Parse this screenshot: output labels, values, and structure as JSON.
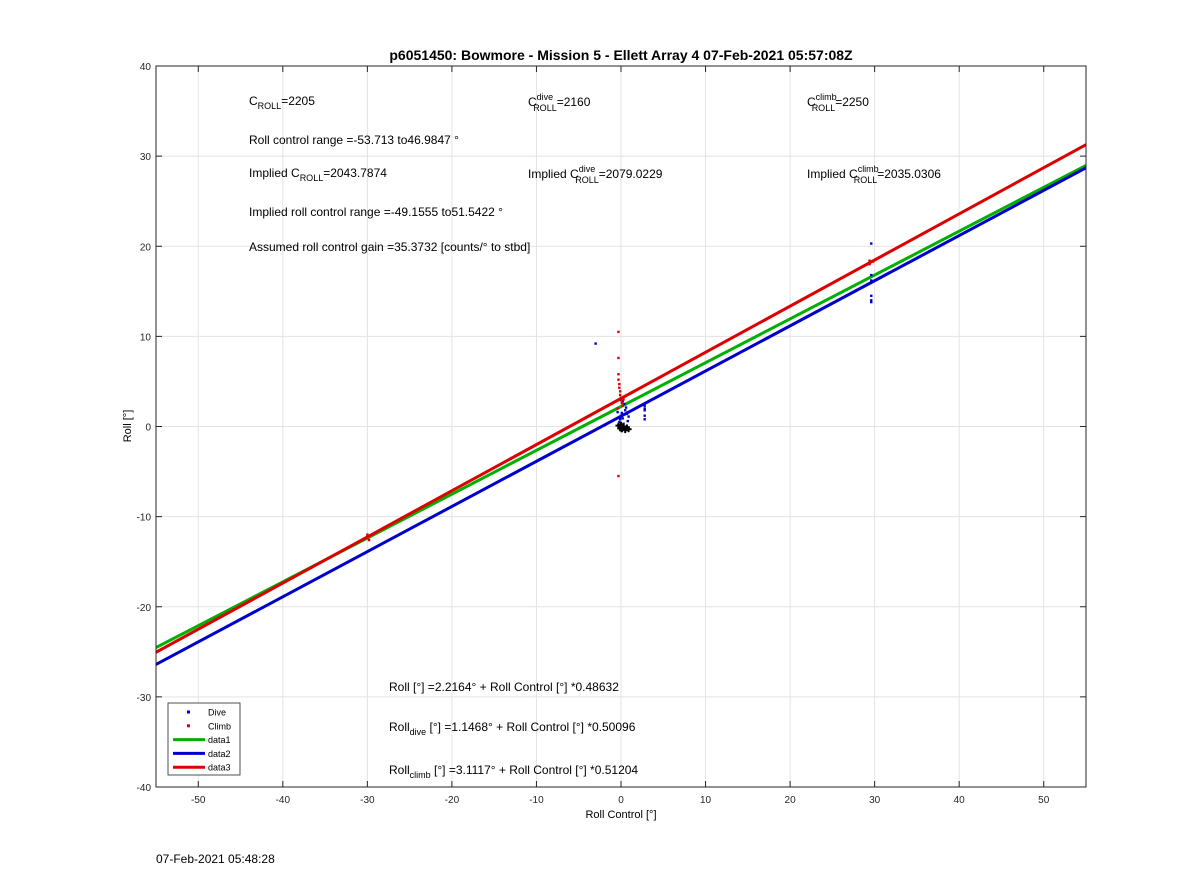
{
  "chart_data": {
    "type": "scatter",
    "title": "p6051450: Bowmore - Mission 5 - Ellett Array 4 07-Feb-2021 05:57:08Z",
    "xlabel": "Roll Control [°]",
    "ylabel": "Roll [°]",
    "xlim": [
      -55,
      55
    ],
    "ylim": [
      -40,
      40
    ],
    "xticks": [
      -50,
      -40,
      -30,
      -20,
      -10,
      0,
      10,
      20,
      30,
      40,
      50
    ],
    "yticks": [
      -40,
      -30,
      -20,
      -10,
      0,
      10,
      20,
      30,
      40
    ],
    "grid": true,
    "legend_position": "bottom-left",
    "series": [
      {
        "name": "Dive",
        "kind": "points",
        "color": "#0000cc",
        "points": [
          [
            -3,
            9.2
          ],
          [
            29.6,
            20.3
          ],
          [
            29.6,
            16.8
          ],
          [
            29.6,
            16.2
          ],
          [
            29.6,
            14.5
          ],
          [
            29.6,
            13.8
          ],
          [
            29.6,
            14.0
          ],
          [
            -0.3,
            0.2
          ],
          [
            -0.2,
            0.5
          ],
          [
            -0.1,
            0.8
          ],
          [
            0.0,
            1.2
          ],
          [
            0.1,
            1.5
          ],
          [
            0.2,
            0.9
          ],
          [
            0.3,
            0.3
          ],
          [
            0.5,
            1.8
          ],
          [
            0.6,
            2.1
          ],
          [
            0.7,
            1.4
          ],
          [
            0.8,
            0.6
          ],
          [
            0.9,
            1.1
          ],
          [
            0.4,
            2.5
          ],
          [
            0.2,
            2.8
          ],
          [
            -0.4,
            1.6
          ],
          [
            0.1,
            -0.5
          ],
          [
            0.3,
            -0.2
          ],
          [
            0.6,
            -0.4
          ],
          [
            2.8,
            2.3
          ],
          [
            2.8,
            1.8
          ],
          [
            2.8,
            1.2
          ],
          [
            2.8,
            0.8
          ],
          [
            2.8,
            2.0
          ]
        ]
      },
      {
        "name": "Climb",
        "kind": "points",
        "color": "#e00000",
        "points": [
          [
            -30,
            -12
          ],
          [
            -30,
            -12.4
          ],
          [
            -29.8,
            -12.6
          ],
          [
            29.4,
            18.4
          ],
          [
            29.4,
            18.0
          ],
          [
            29.8,
            18.3
          ],
          [
            30.1,
            18.5
          ],
          [
            -0.3,
            10.5
          ],
          [
            -0.3,
            7.6
          ],
          [
            -0.3,
            5.8
          ],
          [
            -0.3,
            5.2
          ],
          [
            -0.2,
            4.7
          ],
          [
            -0.2,
            4.3
          ],
          [
            -0.1,
            3.9
          ],
          [
            -0.1,
            3.5
          ],
          [
            0.0,
            3.2
          ],
          [
            0.0,
            2.9
          ],
          [
            0.1,
            2.6
          ],
          [
            0.2,
            2.3
          ],
          [
            -0.4,
            2.0
          ],
          [
            0.3,
            3.0
          ],
          [
            -0.3,
            -5.5
          ]
        ]
      },
      {
        "name": "",
        "kind": "markers",
        "color": "#000000",
        "points": [
          [
            -0.3,
            0.1
          ],
          [
            -0.1,
            -0.2
          ],
          [
            0.1,
            -0.3
          ],
          [
            0.3,
            0.0
          ],
          [
            0.5,
            -0.4
          ],
          [
            0.7,
            -0.1
          ],
          [
            0.9,
            -0.3
          ],
          [
            0.0,
            0.2
          ]
        ]
      },
      {
        "name": "data1",
        "kind": "line",
        "color": "#00b000",
        "intercept": 2.2164,
        "slope": 0.48632
      },
      {
        "name": "data2",
        "kind": "line",
        "color": "#0000cc",
        "intercept": 1.1468,
        "slope": 0.50096
      },
      {
        "name": "data3",
        "kind": "line",
        "color": "#dd0000",
        "intercept": 3.1117,
        "slope": 0.51204
      }
    ],
    "annotations": {
      "c_roll": {
        "main": "C",
        "sub": "ROLL",
        "value": "=2205"
      },
      "c_roll_dive": {
        "main": "C",
        "sub": "ROLL",
        "sup": "dive",
        "value": "=2160"
      },
      "c_roll_climb": {
        "main": "C",
        "sub": "ROLL",
        "sup": "climb",
        "value": "=2250"
      },
      "roll_range": "Roll control range =-53.713 to46.9847 °",
      "implied_c_roll": {
        "prefix": "Implied C",
        "sub": "ROLL",
        "value": "=2043.7874"
      },
      "implied_c_roll_dive": {
        "prefix": "Implied C",
        "sub": "ROLL",
        "sup": "dive",
        "value": "=2079.0229"
      },
      "implied_c_roll_climb": {
        "prefix": "Implied C",
        "sub": "ROLL",
        "sup": "climb",
        "value": "=2035.0306"
      },
      "implied_range": "Implied roll control range =-49.1555 to51.5422 °",
      "gain": "Assumed roll control gain =35.3732 [counts/° to stbd]",
      "fit_all": {
        "prefix": "Roll",
        "text": " [°] =2.2164° + Roll Control [°] *0.48632"
      },
      "fit_dive": {
        "prefix": "Roll",
        "sub": "dive",
        "text": " [°] =1.1468° + Roll Control [°] *0.50096"
      },
      "fit_climb": {
        "prefix": "Roll",
        "sub": "climb",
        "text": " [°] =3.1117° + Roll Control [°] *0.51204"
      }
    }
  },
  "footer": {
    "timestamp": "07-Feb-2021 05:48:28"
  }
}
